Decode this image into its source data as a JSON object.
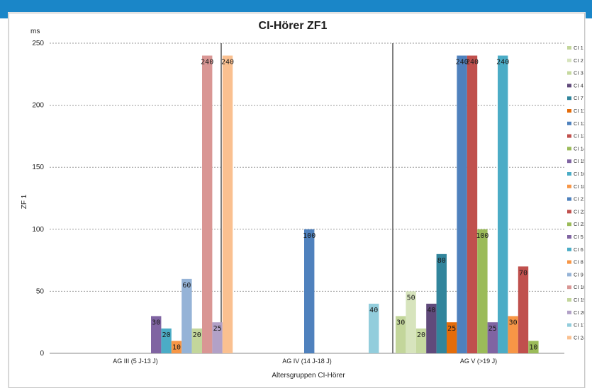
{
  "chart_data": {
    "type": "bar",
    "title": "CI-Hörer ZF1",
    "xlabel": "Altersgruppen CI-Hörer",
    "ylabel": "ZF 1",
    "yunit": "ms",
    "ylim": [
      0,
      250
    ],
    "yticks": [
      0,
      50,
      100,
      150,
      200,
      250
    ],
    "grid": "horizontal-dashed",
    "legend_position": "right",
    "categories": [
      "AG III (5 J-13 J)",
      "AG IV (14 J-18 J)",
      "AG V (>19 J)"
    ],
    "series": [
      {
        "name": "CI 1",
        "color": "#c3d69b",
        "values": [
          null,
          null,
          30
        ]
      },
      {
        "name": "CI 2",
        "color": "#d7e4bd",
        "values": [
          null,
          null,
          50
        ]
      },
      {
        "name": "CI 3",
        "color": "#c6d9a0",
        "values": [
          null,
          null,
          20
        ]
      },
      {
        "name": "CI 4",
        "color": "#604a7b",
        "values": [
          null,
          null,
          40
        ]
      },
      {
        "name": "CI 7",
        "color": "#31859c",
        "values": [
          null,
          null,
          80
        ]
      },
      {
        "name": "CI 11",
        "color": "#e46c0a",
        "values": [
          null,
          null,
          25
        ]
      },
      {
        "name": "CI 12",
        "color": "#4f81bd",
        "values": [
          null,
          null,
          240
        ]
      },
      {
        "name": "CI 13",
        "color": "#c0504d",
        "values": [
          null,
          null,
          240
        ]
      },
      {
        "name": "CI 14",
        "color": "#9bbb59",
        "values": [
          null,
          null,
          100
        ]
      },
      {
        "name": "CI 15",
        "color": "#8064a2",
        "values": [
          null,
          null,
          25
        ]
      },
      {
        "name": "CI 16",
        "color": "#4bacc6",
        "values": [
          null,
          null,
          240
        ]
      },
      {
        "name": "CI 18",
        "color": "#f79646",
        "values": [
          null,
          null,
          30
        ]
      },
      {
        "name": "CI 21",
        "color": "#4f81bd",
        "values": [
          null,
          100,
          null
        ]
      },
      {
        "name": "CI 22",
        "color": "#c0504d",
        "values": [
          null,
          null,
          70
        ]
      },
      {
        "name": "CI 23",
        "color": "#9bbb59",
        "values": [
          null,
          null,
          10
        ]
      },
      {
        "name": "CI 5",
        "color": "#8064a2",
        "values": [
          30,
          null,
          null
        ]
      },
      {
        "name": "CI 6",
        "color": "#4bacc6",
        "values": [
          20,
          null,
          null
        ]
      },
      {
        "name": "CI 8",
        "color": "#f79646",
        "values": [
          10,
          null,
          null
        ]
      },
      {
        "name": "CI 9",
        "color": "#95b3d7",
        "values": [
          60,
          null,
          null
        ]
      },
      {
        "name": "CI 10",
        "color": "#d99694",
        "values": [
          240,
          null,
          null
        ]
      },
      {
        "name": "CI 19",
        "color": "#c3d69b",
        "values": [
          20,
          null,
          null
        ]
      },
      {
        "name": "CI 20",
        "color": "#b2a1c7",
        "values": [
          25,
          null,
          null
        ]
      },
      {
        "name": "CI 17",
        "color": "#92cddc",
        "values": [
          null,
          40,
          null
        ]
      },
      {
        "name": "CI 24",
        "color": "#fac090",
        "values": [
          240,
          null,
          null
        ]
      }
    ]
  },
  "bar_order": [
    [
      "CI 5",
      "CI 6",
      "CI 8",
      "CI 9",
      "CI 19",
      "CI 10",
      "CI 20",
      "CI 24"
    ],
    [
      "CI 21",
      "CI 17"
    ],
    [
      "CI 1",
      "CI 2",
      "CI 3",
      "CI 4",
      "CI 7",
      "CI 11",
      "CI 12",
      "CI 13",
      "CI 14",
      "CI 15",
      "CI 16",
      "CI 18",
      "CI 22",
      "CI 23"
    ]
  ],
  "colors": {
    "frame_blue": "#1a86c8",
    "divider": "#7f7f7f",
    "grid": "#9a9a9a"
  }
}
